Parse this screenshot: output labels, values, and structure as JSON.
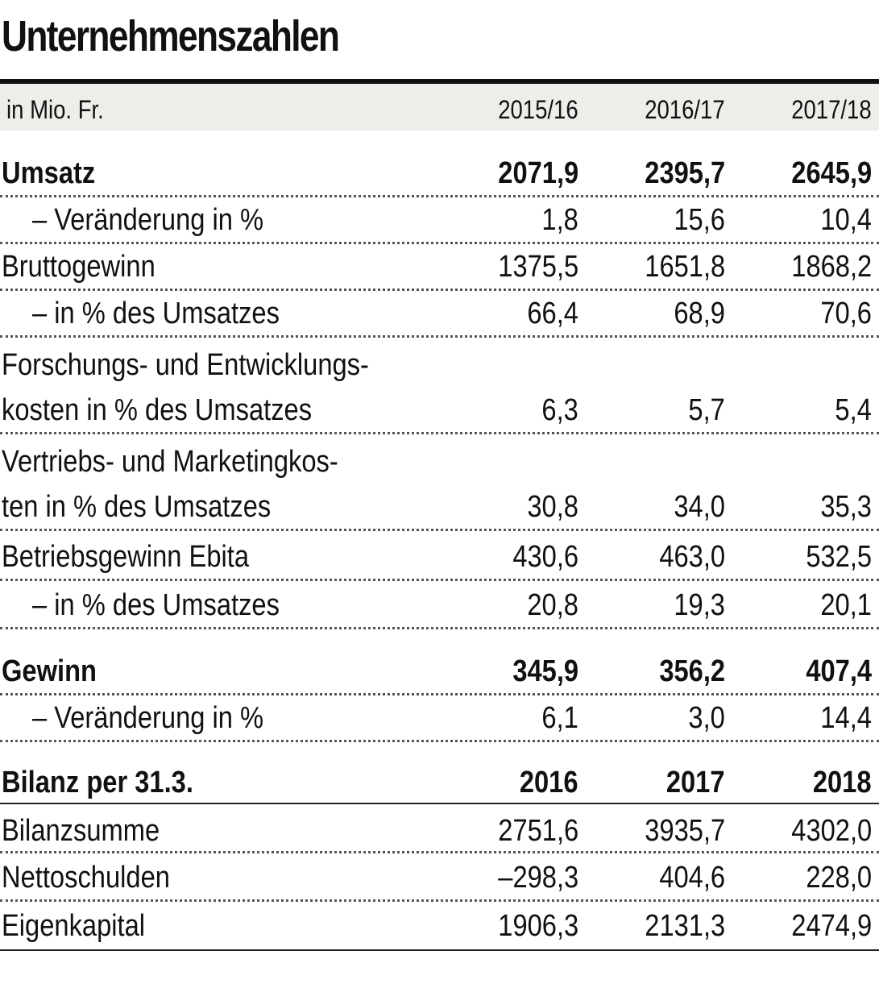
{
  "title": "Unternehmenszahlen",
  "header": {
    "unit": "in Mio. Fr.",
    "years": [
      "2015/16",
      "2016/17",
      "2017/18"
    ]
  },
  "rows": [
    {
      "label": "Umsatz",
      "values": [
        "2071,9",
        "2395,7",
        "2645,9"
      ]
    },
    {
      "label": "–  Veränderung in %",
      "values": [
        "1,8",
        "15,6",
        "10,4"
      ]
    },
    {
      "label": "Bruttogewinn",
      "values": [
        "1375,5",
        "1651,8",
        "1868,2"
      ]
    },
    {
      "label": "– in % des Umsatzes",
      "values": [
        "66,4",
        "68,9",
        "70,6"
      ]
    },
    {
      "label_line1": "Forschungs- und Entwicklungs-",
      "label_line2": "kosten in % des Umsatzes",
      "values": [
        "6,3",
        "5,7",
        "5,4"
      ]
    },
    {
      "label_line1": "Vertriebs- und Marketingkos-",
      "label_line2": "ten in % des Umsatzes",
      "values": [
        "30,8",
        "34,0",
        "35,3"
      ]
    },
    {
      "label": "Betriebsgewinn Ebita",
      "values": [
        "430,6",
        "463,0",
        "532,5"
      ]
    },
    {
      "label": "– in % des Umsatzes",
      "values": [
        "20,8",
        "19,3",
        "20,1"
      ]
    },
    {
      "label": "Gewinn",
      "values": [
        "345,9",
        "356,2",
        "407,4"
      ]
    },
    {
      "label": "– Veränderung in %",
      "values": [
        "6,1",
        "3,0",
        "14,4"
      ]
    }
  ],
  "balance": {
    "label": "Bilanz per 31.3.",
    "years": [
      "2016",
      "2017",
      "2018"
    ],
    "rows": [
      {
        "label": "Bilanzsumme",
        "values": [
          "2751,6",
          "3935,7",
          "4302,0"
        ]
      },
      {
        "label": "Nettoschulden",
        "values": [
          "–298,3",
          "404,6",
          "228,0"
        ]
      },
      {
        "label": "Eigenkapital",
        "values": [
          "1906,3",
          "2131,3",
          "2474,9"
        ]
      }
    ]
  }
}
